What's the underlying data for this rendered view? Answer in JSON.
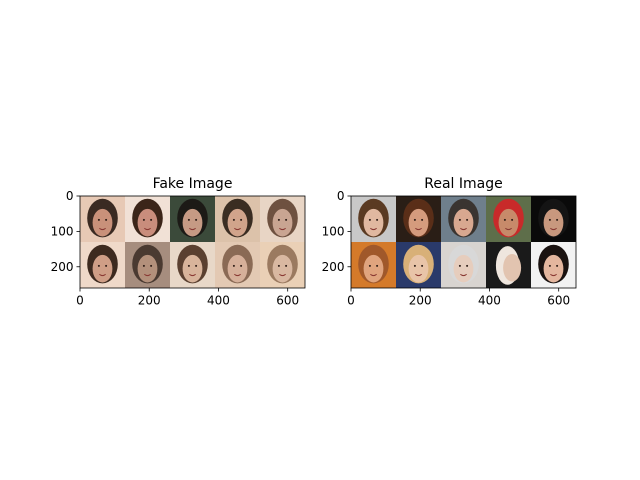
{
  "chart_data": [
    {
      "type": "image-grid",
      "title": "Fake Image",
      "xticks": [
        0,
        200,
        400,
        600
      ],
      "yticks": [
        0,
        100,
        200
      ],
      "xlim": [
        0,
        650
      ],
      "ylim": [
        0,
        260
      ],
      "grid_rows": 2,
      "grid_cols": 5,
      "tiles": [
        {
          "skin": "#c9917a",
          "hair": "#3a2a22",
          "bg": "#e7c9b5",
          "face": "face"
        },
        {
          "skin": "#c98d7c",
          "hair": "#3b2519",
          "bg": "#f1e1d6",
          "face": "face"
        },
        {
          "skin": "#c69a84",
          "hair": "#1c1a16",
          "bg": "#3b4a3a",
          "face": "face"
        },
        {
          "skin": "#d1a48b",
          "hair": "#3a2d22",
          "bg": "#dcc2aa",
          "face": "face"
        },
        {
          "skin": "#c9a592",
          "hair": "#6e5140",
          "bg": "#e8d5c5",
          "face": "face"
        },
        {
          "skin": "#cf9e86",
          "hair": "#3d2a1f",
          "bg": "#efd9c9",
          "face": "face"
        },
        {
          "skin": "#b3907b",
          "hair": "#4a3a31",
          "bg": "#a68d7e",
          "face": "face"
        },
        {
          "skin": "#d8b49b",
          "hair": "#5a4030",
          "bg": "#e8d8c8",
          "face": "face"
        },
        {
          "skin": "#d6b09a",
          "hair": "#8a6a55",
          "bg": "#e3c9b3",
          "face": "face"
        },
        {
          "skin": "#d9b8a1",
          "hair": "#9b7a60",
          "bg": "#ead0b6",
          "face": "face"
        }
      ]
    },
    {
      "type": "image-grid",
      "title": "Real Image",
      "xticks": [
        0,
        200,
        400,
        600
      ],
      "yticks": [
        0,
        100,
        200
      ],
      "xlim": [
        0,
        650
      ],
      "ylim": [
        0,
        260
      ],
      "grid_rows": 2,
      "grid_cols": 5,
      "tiles": [
        {
          "skin": "#e0b8a0",
          "hair": "#5a3a22",
          "bg": "#c8c8c8",
          "face": "face"
        },
        {
          "skin": "#d59b7d",
          "hair": "#5a2e18",
          "bg": "#2a1e16",
          "face": "face"
        },
        {
          "skin": "#d8a890",
          "hair": "#3a3430",
          "bg": "#6f7f8c",
          "face": "face"
        },
        {
          "skin": "#c78a6a",
          "hair": "#c82a2a",
          "bg": "#5e6e4a",
          "face": "face"
        },
        {
          "skin": "#c8987e",
          "hair": "#141414",
          "bg": "#0a0a0a",
          "face": "face"
        },
        {
          "skin": "#e0a47e",
          "hair": "#a0582a",
          "bg": "#d47a2a",
          "face": "face"
        },
        {
          "skin": "#e8c4a8",
          "hair": "#d8b078",
          "bg": "#2a3a6a",
          "face": "face"
        },
        {
          "skin": "#e6cdbd",
          "hair": "#d8d8d8",
          "bg": "#d8d4d0",
          "face": "face"
        },
        {
          "skin": "#e2c4b0",
          "hair": "#efe6de",
          "bg": "#1a1a1a",
          "face": "profile"
        },
        {
          "skin": "#e4b69e",
          "hair": "#1a1210",
          "bg": "#f2f2f2",
          "face": "face"
        }
      ]
    }
  ]
}
